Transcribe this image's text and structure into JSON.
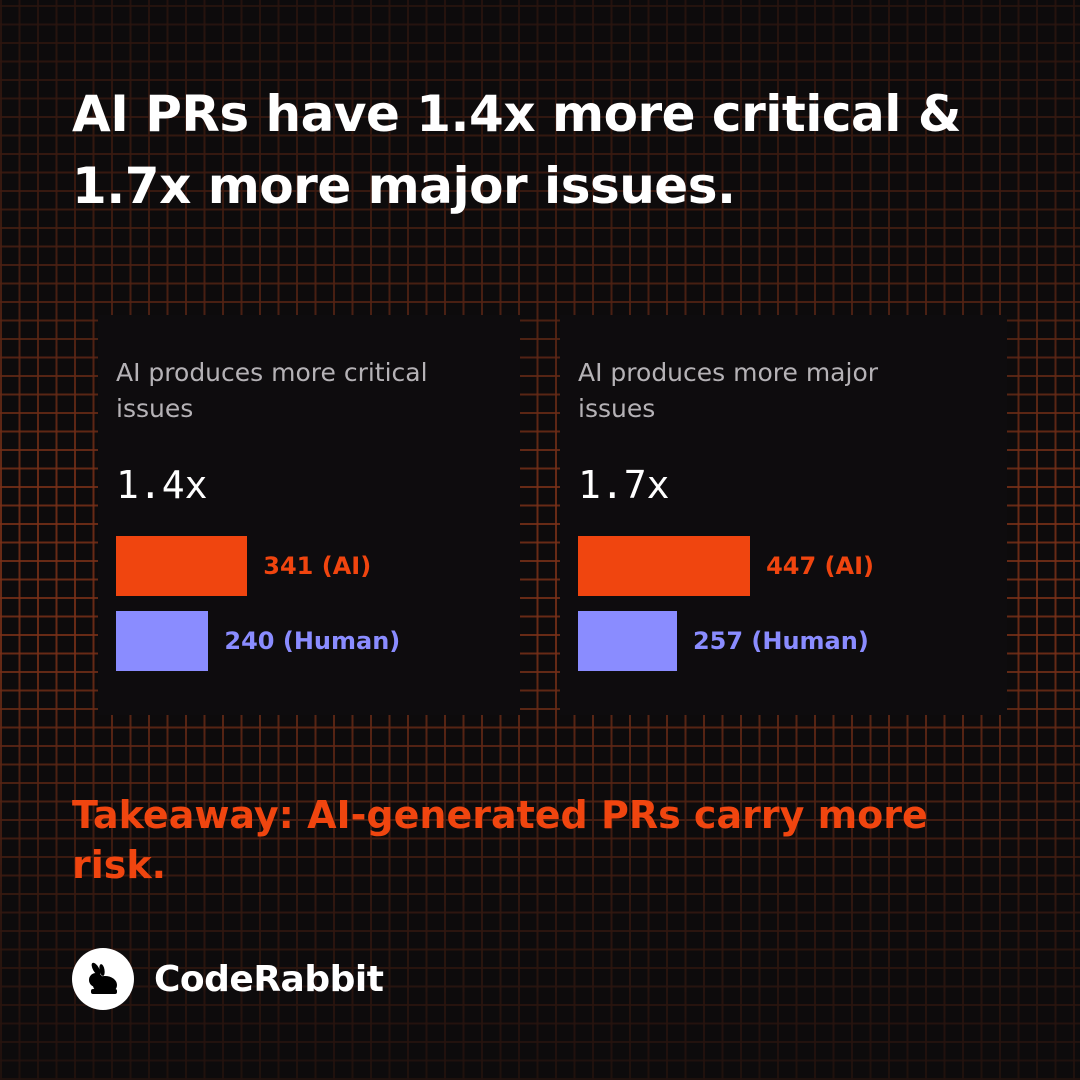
{
  "headline": "AI PRs have 1.4x more critical & 1.7x more major issues.",
  "colors": {
    "ai": "#f0450f",
    "human": "#8a8cff",
    "background": "#0d0b0c",
    "grid": "#783018"
  },
  "chart_data": [
    {
      "type": "bar",
      "orientation": "horizontal",
      "title": "AI produces more critical issues",
      "ratio_label": "1.4x",
      "categories": [
        "AI",
        "Human"
      ],
      "values": [
        341,
        240
      ],
      "labels": [
        "341 (AI)",
        "240 (Human)"
      ]
    },
    {
      "type": "bar",
      "orientation": "horizontal",
      "title": "AI produces more major issues",
      "ratio_label": "1.7x",
      "categories": [
        "AI",
        "Human"
      ],
      "values": [
        447,
        257
      ],
      "labels": [
        "447 (AI)",
        "257 (Human)"
      ]
    }
  ],
  "takeaway": "Takeaway: AI-generated PRs carry more risk.",
  "brand": {
    "name": "CodeRabbit",
    "icon": "rabbit-icon"
  }
}
